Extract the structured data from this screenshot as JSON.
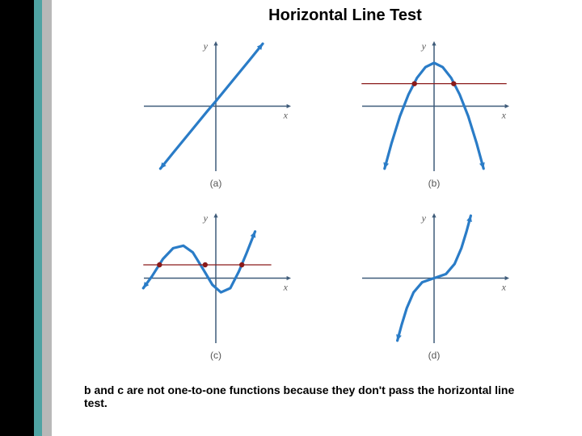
{
  "title": "Horizontal Line Test",
  "caption": "b and c are not one-to-one functions because they don't pass the horizontal line test.",
  "colors": {
    "axis": "#3f5c7a",
    "curve": "#2a7cc7",
    "hline": "#8a1a1a",
    "dot": "#8a1a1a",
    "label": "#555555",
    "bg": "#ffffff",
    "stripe_black": "#000000",
    "stripe_teal": "#4fa3a3",
    "stripe_gray": "#b8b8b8"
  },
  "plot_size": {
    "w": 190,
    "h": 165
  },
  "axis": {
    "xlabel": "x",
    "ylabel": "y",
    "xlim": [
      -9,
      9
    ],
    "ylim": [
      -8,
      8
    ],
    "stroke_width": 1.5,
    "arrow_size": 6
  },
  "panels": {
    "a": {
      "label": "(a)",
      "type": "line",
      "curve_width": 3.2,
      "points": [
        [
          -6.5,
          -7.5
        ],
        [
          -5,
          -5.6
        ],
        [
          -3,
          -3.1
        ],
        [
          -1,
          -0.6
        ],
        [
          0,
          0.6
        ],
        [
          2,
          3.1
        ],
        [
          4,
          5.6
        ],
        [
          5.5,
          7.5
        ]
      ],
      "arrows": "both",
      "horizontal_line": null,
      "intersections": []
    },
    "b": {
      "label": "(b)",
      "type": "parabola",
      "curve_width": 3.2,
      "points": [
        [
          -5.8,
          -7.5
        ],
        [
          -5,
          -4.5
        ],
        [
          -4,
          -1.2
        ],
        [
          -3,
          1.4
        ],
        [
          -2,
          3.4
        ],
        [
          -1,
          4.7
        ],
        [
          0,
          5.2
        ],
        [
          1,
          4.7
        ],
        [
          2,
          3.4
        ],
        [
          3,
          1.4
        ],
        [
          4,
          -1.2
        ],
        [
          5,
          -4.5
        ],
        [
          5.8,
          -7.5
        ]
      ],
      "arrows": "both",
      "horizontal_line": {
        "y": 2.7,
        "x1": -8.5,
        "x2": 8.5
      },
      "intersections": [
        [
          -2.3,
          2.7
        ],
        [
          2.3,
          2.7
        ]
      ]
    },
    "c": {
      "label": "(c)",
      "type": "wave",
      "curve_width": 3.2,
      "points": [
        [
          -8.5,
          -1.2
        ],
        [
          -7.5,
          0.2
        ],
        [
          -6.2,
          2.3
        ],
        [
          -5,
          3.6
        ],
        [
          -3.8,
          3.9
        ],
        [
          -2.7,
          3.1
        ],
        [
          -1.5,
          1.1
        ],
        [
          -0.4,
          -0.8
        ],
        [
          0.6,
          -1.7
        ],
        [
          1.7,
          -1.2
        ],
        [
          2.7,
          0.8
        ],
        [
          3.6,
          3.0
        ],
        [
          4.6,
          5.6
        ]
      ],
      "arrows": "both",
      "horizontal_line": {
        "y": 1.6,
        "x1": -8.5,
        "x2": 6.5
      },
      "intersections": [
        [
          -6.6,
          1.6
        ],
        [
          -1.25,
          1.6
        ],
        [
          3.05,
          1.6
        ]
      ]
    },
    "d": {
      "label": "(d)",
      "type": "cubic",
      "curve_width": 3.2,
      "points": [
        [
          -4.3,
          -7.5
        ],
        [
          -3.8,
          -5.6
        ],
        [
          -3.2,
          -3.6
        ],
        [
          -2.4,
          -1.7
        ],
        [
          -1.4,
          -0.5
        ],
        [
          0,
          0
        ],
        [
          1.4,
          0.5
        ],
        [
          2.4,
          1.7
        ],
        [
          3.2,
          3.6
        ],
        [
          3.8,
          5.6
        ],
        [
          4.3,
          7.5
        ]
      ],
      "arrows": "both",
      "horizontal_line": null,
      "intersections": []
    }
  },
  "dot_radius": 3.2,
  "hline_width": 1.3
}
